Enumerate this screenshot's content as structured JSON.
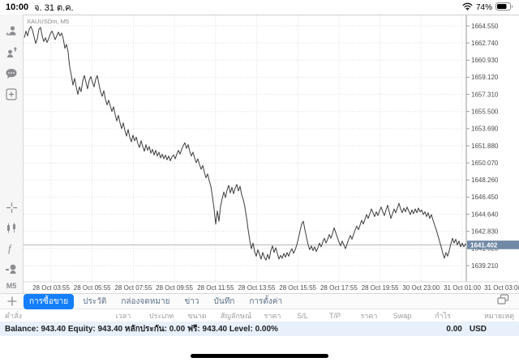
{
  "status_bar": {
    "time": "10:00",
    "date": "จ. 31 ต.ค.",
    "battery_percent": "74%",
    "icons": [
      "wifi-icon",
      "battery-icon"
    ]
  },
  "sidebar": {
    "icons": [
      "account-icon",
      "send-order-icon",
      "chat-icon",
      "new-order-icon",
      "crosshair-icon",
      "chart-type-icon",
      "indicators-icon",
      "objects-icon"
    ],
    "timeframe": "M5"
  },
  "chart": {
    "symbol_label": "XAUUSDm, M5",
    "bid_price": "1641.402"
  },
  "chart_data": {
    "type": "line",
    "title": "XAUUSDm, M5",
    "xlabel": "",
    "ylabel": "",
    "grid": true,
    "bid": 1641.402,
    "ylim": [
      1638.3,
      1665.6
    ],
    "y_ticks": [
      1664.55,
      1662.74,
      1660.93,
      1659.12,
      1657.31,
      1655.5,
      1653.69,
      1651.88,
      1650.07,
      1648.26,
      1646.45,
      1644.64,
      1642.83,
      1641.02,
      1639.21
    ],
    "x_labels": [
      "28 Oct 03:55",
      "28 Oct 05:55",
      "28 Oct 07:55",
      "28 Oct 09:55",
      "28 Oct 11:55",
      "28 Oct 13:55",
      "28 Oct 15:55",
      "28 Oct 17:55",
      "28 Oct 19:55",
      "30 Oct 23:00",
      "31 Oct 01:00",
      "31 Oct 03:00"
    ],
    "series": [
      {
        "name": "XAUUSDm M5",
        "points": [
          [
            30,
            1663.3
          ],
          [
            32,
            1664.0
          ],
          [
            34,
            1663.5
          ],
          [
            36,
            1664.2
          ],
          [
            38,
            1664.5
          ],
          [
            40,
            1664.1
          ],
          [
            42,
            1663.4
          ],
          [
            44,
            1662.7
          ],
          [
            46,
            1663.2
          ],
          [
            48,
            1664.2
          ],
          [
            50,
            1664.4
          ],
          [
            52,
            1663.5
          ],
          [
            54,
            1662.9
          ],
          [
            56,
            1663.3
          ],
          [
            58,
            1662.8
          ],
          [
            60,
            1663.2
          ],
          [
            62,
            1663.7
          ],
          [
            64,
            1664.0
          ],
          [
            66,
            1663.6
          ],
          [
            68,
            1663.1
          ],
          [
            70,
            1663.5
          ],
          [
            72,
            1663.9
          ],
          [
            74,
            1663.5
          ],
          [
            76,
            1663.8
          ],
          [
            78,
            1663.2
          ],
          [
            80,
            1662.2
          ],
          [
            82,
            1662.6
          ],
          [
            84,
            1661.8
          ],
          [
            85,
            1660.9
          ],
          [
            86,
            1660.2
          ],
          [
            88,
            1659.3
          ],
          [
            90,
            1658.3
          ],
          [
            92,
            1659.0
          ],
          [
            94,
            1658.1
          ],
          [
            96,
            1657.3
          ],
          [
            98,
            1658.1
          ],
          [
            100,
            1657.6
          ],
          [
            102,
            1658.7
          ],
          [
            104,
            1659.3
          ],
          [
            106,
            1658.6
          ],
          [
            108,
            1657.9
          ],
          [
            110,
            1658.8
          ],
          [
            112,
            1659.2
          ],
          [
            114,
            1658.6
          ],
          [
            116,
            1658.1
          ],
          [
            118,
            1658.9
          ],
          [
            120,
            1659.3
          ],
          [
            122,
            1658.4
          ],
          [
            124,
            1657.6
          ],
          [
            126,
            1657.1
          ],
          [
            128,
            1657.7
          ],
          [
            130,
            1656.8
          ],
          [
            132,
            1656.2
          ],
          [
            134,
            1656.7
          ],
          [
            136,
            1656.1
          ],
          [
            138,
            1655.5
          ],
          [
            140,
            1656.0
          ],
          [
            142,
            1655.2
          ],
          [
            144,
            1654.5
          ],
          [
            146,
            1655.1
          ],
          [
            148,
            1654.3
          ],
          [
            150,
            1653.7
          ],
          [
            152,
            1654.3
          ],
          [
            154,
            1653.5
          ],
          [
            156,
            1652.9
          ],
          [
            158,
            1653.6
          ],
          [
            160,
            1652.8
          ],
          [
            162,
            1652.3
          ],
          [
            164,
            1653.0
          ],
          [
            166,
            1652.4
          ],
          [
            168,
            1652.8
          ],
          [
            170,
            1652.1
          ],
          [
            172,
            1651.7
          ],
          [
            174,
            1652.4
          ],
          [
            176,
            1651.8
          ],
          [
            178,
            1651.3
          ],
          [
            180,
            1652.0
          ],
          [
            182,
            1651.4
          ],
          [
            184,
            1651.8
          ],
          [
            186,
            1651.1
          ],
          [
            188,
            1651.5
          ],
          [
            190,
            1650.9
          ],
          [
            192,
            1651.4
          ],
          [
            194,
            1650.8
          ],
          [
            196,
            1651.2
          ],
          [
            198,
            1650.6
          ],
          [
            200,
            1651.0
          ],
          [
            202,
            1650.5
          ],
          [
            204,
            1650.9
          ],
          [
            206,
            1650.4
          ],
          [
            208,
            1650.8
          ],
          [
            210,
            1650.3
          ],
          [
            212,
            1650.7
          ],
          [
            214,
            1650.9
          ],
          [
            216,
            1650.5
          ],
          [
            218,
            1651.0
          ],
          [
            220,
            1651.4
          ],
          [
            222,
            1651.0
          ],
          [
            224,
            1651.5
          ],
          [
            226,
            1651.9
          ],
          [
            228,
            1652.2
          ],
          [
            230,
            1651.6
          ],
          [
            232,
            1652.0
          ],
          [
            234,
            1651.3
          ],
          [
            236,
            1650.8
          ],
          [
            238,
            1651.2
          ],
          [
            240,
            1650.6
          ],
          [
            242,
            1650.1
          ],
          [
            244,
            1650.5
          ],
          [
            246,
            1649.9
          ],
          [
            248,
            1649.4
          ],
          [
            250,
            1649.8
          ],
          [
            252,
            1649.1
          ],
          [
            254,
            1648.5
          ],
          [
            256,
            1648.9
          ],
          [
            258,
            1648.2
          ],
          [
            260,
            1647.6
          ],
          [
            262,
            1646.5
          ],
          [
            264,
            1645.2
          ],
          [
            266,
            1643.6
          ],
          [
            268,
            1645.0
          ],
          [
            270,
            1643.9
          ],
          [
            272,
            1645.5
          ],
          [
            274,
            1646.3
          ],
          [
            276,
            1647.0
          ],
          [
            278,
            1646.4
          ],
          [
            280,
            1647.2
          ],
          [
            282,
            1647.7
          ],
          [
            284,
            1646.9
          ],
          [
            286,
            1647.5
          ],
          [
            288,
            1646.8
          ],
          [
            290,
            1647.4
          ],
          [
            292,
            1647.8
          ],
          [
            294,
            1647.1
          ],
          [
            296,
            1647.6
          ],
          [
            298,
            1646.7
          ],
          [
            300,
            1646.2
          ],
          [
            302,
            1645.4
          ],
          [
            304,
            1644.3
          ],
          [
            306,
            1643.0
          ],
          [
            308,
            1641.9
          ],
          [
            310,
            1641.0
          ],
          [
            312,
            1641.6
          ],
          [
            314,
            1640.7
          ],
          [
            316,
            1640.2
          ],
          [
            318,
            1640.9
          ],
          [
            320,
            1640.4
          ],
          [
            322,
            1639.9
          ],
          [
            324,
            1640.6
          ],
          [
            326,
            1640.1
          ],
          [
            328,
            1639.8
          ],
          [
            330,
            1640.4
          ],
          [
            332,
            1639.9
          ],
          [
            334,
            1640.8
          ],
          [
            336,
            1641.3
          ],
          [
            338,
            1640.6
          ],
          [
            340,
            1641.1
          ],
          [
            342,
            1640.5
          ],
          [
            344,
            1639.9
          ],
          [
            346,
            1640.3
          ],
          [
            348,
            1640.0
          ],
          [
            350,
            1640.5
          ],
          [
            352,
            1640.1
          ],
          [
            354,
            1640.6
          ],
          [
            356,
            1640.2
          ],
          [
            358,
            1640.7
          ],
          [
            360,
            1641.0
          ],
          [
            362,
            1640.5
          ],
          [
            364,
            1640.9
          ],
          [
            366,
            1641.4
          ],
          [
            368,
            1642.1
          ],
          [
            370,
            1642.9
          ],
          [
            372,
            1643.6
          ],
          [
            374,
            1643.9
          ],
          [
            376,
            1643.0
          ],
          [
            378,
            1642.2
          ],
          [
            380,
            1641.4
          ],
          [
            382,
            1640.9
          ],
          [
            384,
            1641.3
          ],
          [
            386,
            1640.8
          ],
          [
            388,
            1641.2
          ],
          [
            390,
            1640.7
          ],
          [
            392,
            1641.1
          ],
          [
            394,
            1641.6
          ],
          [
            396,
            1641.2
          ],
          [
            398,
            1641.7
          ],
          [
            400,
            1642.1
          ],
          [
            402,
            1641.6
          ],
          [
            404,
            1642.0
          ],
          [
            406,
            1642.5
          ],
          [
            408,
            1642.1
          ],
          [
            410,
            1642.6
          ],
          [
            412,
            1643.2
          ],
          [
            414,
            1642.7
          ],
          [
            416,
            1642.2
          ],
          [
            418,
            1641.7
          ],
          [
            420,
            1641.3
          ],
          [
            422,
            1641.8
          ],
          [
            424,
            1641.4
          ],
          [
            426,
            1641.0
          ],
          [
            428,
            1641.5
          ],
          [
            430,
            1642.0
          ],
          [
            432,
            1642.4
          ],
          [
            434,
            1642.0
          ],
          [
            436,
            1642.5
          ],
          [
            438,
            1643.0
          ],
          [
            440,
            1643.4
          ],
          [
            442,
            1643.0
          ],
          [
            444,
            1643.5
          ],
          [
            446,
            1644.0
          ],
          [
            448,
            1643.6
          ],
          [
            450,
            1644.1
          ],
          [
            452,
            1644.6
          ],
          [
            454,
            1644.2
          ],
          [
            456,
            1644.7
          ],
          [
            458,
            1645.2
          ],
          [
            460,
            1644.8
          ],
          [
            462,
            1644.4
          ],
          [
            464,
            1644.9
          ],
          [
            466,
            1644.5
          ],
          [
            468,
            1645.0
          ],
          [
            470,
            1645.4
          ],
          [
            472,
            1644.9
          ],
          [
            474,
            1644.5
          ],
          [
            476,
            1645.1
          ],
          [
            478,
            1645.6
          ],
          [
            480,
            1644.9
          ],
          [
            482,
            1644.2
          ],
          [
            484,
            1644.7
          ],
          [
            486,
            1645.2
          ],
          [
            488,
            1644.8
          ],
          [
            490,
            1645.3
          ],
          [
            492,
            1645.8
          ],
          [
            494,
            1645.2
          ],
          [
            496,
            1644.8
          ],
          [
            498,
            1645.3
          ],
          [
            500,
            1644.9
          ],
          [
            502,
            1645.4
          ],
          [
            504,
            1645.0
          ],
          [
            506,
            1644.6
          ],
          [
            508,
            1645.1
          ],
          [
            510,
            1644.7
          ],
          [
            512,
            1645.2
          ],
          [
            514,
            1644.8
          ],
          [
            516,
            1645.3
          ],
          [
            518,
            1644.9
          ],
          [
            520,
            1645.1
          ],
          [
            522,
            1644.6
          ],
          [
            524,
            1644.9
          ],
          [
            526,
            1644.4
          ],
          [
            528,
            1644.8
          ],
          [
            530,
            1644.2
          ],
          [
            532,
            1644.6
          ],
          [
            534,
            1644.0
          ],
          [
            536,
            1643.5
          ],
          [
            538,
            1643.0
          ],
          [
            540,
            1642.4
          ],
          [
            542,
            1641.8
          ],
          [
            544,
            1641.2
          ],
          [
            546,
            1640.5
          ],
          [
            548,
            1640.0
          ],
          [
            550,
            1640.6
          ],
          [
            552,
            1640.2
          ],
          [
            554,
            1640.8
          ],
          [
            556,
            1641.5
          ],
          [
            558,
            1642.1
          ],
          [
            560,
            1641.6
          ],
          [
            562,
            1642.0
          ],
          [
            564,
            1641.4
          ],
          [
            566,
            1641.8
          ],
          [
            568,
            1641.2
          ],
          [
            570,
            1641.6
          ],
          [
            572,
            1641.2
          ],
          [
            574,
            1641.5
          ],
          [
            575,
            1641.4
          ]
        ]
      }
    ],
    "legend": null
  },
  "colors": {
    "accent_blue": "#157efd",
    "bid_box": "#7189a5",
    "line": "#3c3c3c",
    "grid": "#dedede",
    "account_bar_bg": "#e7f0fb"
  },
  "tab_bar": {
    "plus_icon": "plus-icon",
    "windows_icon": "windows-icon",
    "items": [
      "การซื้อขาย",
      "ประวัติ",
      "กล่องจดหมาย",
      "ข่าว",
      "บันทึก",
      "การตั้งค่า"
    ],
    "selected": "การซื้อขาย"
  },
  "trade_table": {
    "columns": [
      "คำสั่ง",
      "เวลา",
      "ประเภท",
      "ขนาด",
      "สัญลักษณ์",
      "ราคา",
      "S/L",
      "T/P",
      "ราคา",
      "Swap",
      "กำไร",
      "หมายเหตุ"
    ]
  },
  "account": {
    "summary": "Balance: 943.40 Equity: 943.40 หลักประกัน: 0.00 ฟรี: 943.40 Level: 0.00%",
    "profit": "0.00",
    "currency": "USD"
  }
}
